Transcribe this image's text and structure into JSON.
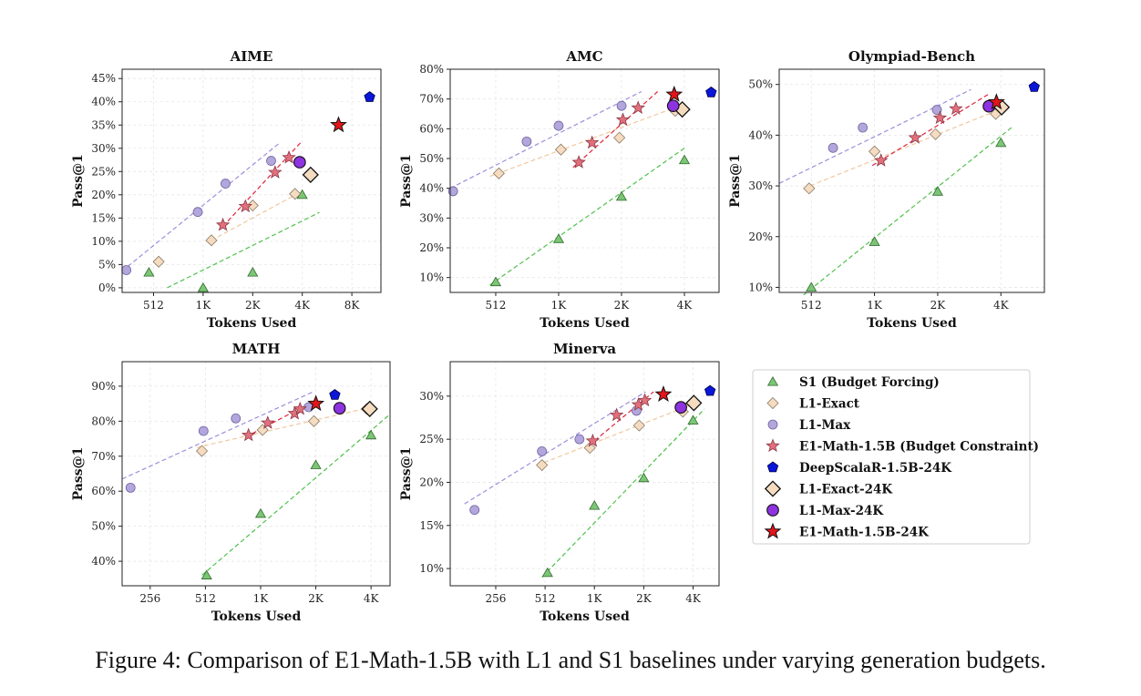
{
  "caption": "Figure 4: Comparison of E1-Math-1.5B with L1 and S1 baselines under varying generation budgets.",
  "colors": {
    "s1": "#7cc576",
    "l1_exact": "#f5dcc0",
    "l1_max": "#b3a6dc",
    "e1": "#e2707c",
    "deepscalar": "#0a16d8",
    "l1_exact_24k": "#f5dcc0",
    "l1_max_24k": "#8e33e0",
    "e1_24k": "#e3141a",
    "s1_line": "#4fc14a",
    "l1_exact_line": "#f0c89e",
    "l1_max_line": "#a08ddc",
    "e1_line": "#e0243b"
  },
  "legend": [
    {
      "key": "s1",
      "label": "S1 (Budget Forcing)",
      "marker": "triangle"
    },
    {
      "key": "l1_exact",
      "label": "L1-Exact",
      "marker": "diamond"
    },
    {
      "key": "l1_max",
      "label": "L1-Max",
      "marker": "circle"
    },
    {
      "key": "e1",
      "label": "E1-Math-1.5B (Budget Constraint)",
      "marker": "star"
    },
    {
      "key": "deepscalar",
      "label": "DeepScalaR-1.5B-24K",
      "marker": "pentagon"
    },
    {
      "key": "l1_exact_24k",
      "label": "L1-Exact-24K",
      "marker": "diamond-big"
    },
    {
      "key": "l1_max_24k",
      "label": "L1-Max-24K",
      "marker": "circle-big"
    },
    {
      "key": "e1_24k",
      "label": "E1-Math-1.5B-24K",
      "marker": "star-big"
    }
  ],
  "chart_data": [
    {
      "type": "scatter",
      "title": "AIME",
      "xlabel": "Tokens Used",
      "ylabel": "Pass@1",
      "xscale": "log2",
      "xlim": [
        330,
        12300
      ],
      "ylim": [
        -1,
        47
      ],
      "xticks": [
        512,
        1024,
        2048,
        4096,
        8192
      ],
      "xticklabels": [
        "512",
        "1K",
        "2K",
        "4K",
        "8K"
      ],
      "yticks": [
        0,
        5,
        10,
        15,
        20,
        25,
        30,
        35,
        40,
        45
      ],
      "yticklabels": [
        "0%",
        "5%",
        "10%",
        "15%",
        "20%",
        "25%",
        "30%",
        "35%",
        "40%",
        "45%"
      ],
      "series": [
        {
          "key": "s1",
          "x": [
            480,
            1024,
            2048,
            4096
          ],
          "y": [
            3.3,
            0,
            3.3,
            20
          ]
        },
        {
          "key": "l1_exact",
          "x": [
            550,
            1150,
            2048,
            3700
          ],
          "y": [
            5.6,
            10.2,
            17.7,
            20.2
          ]
        },
        {
          "key": "l1_max",
          "x": [
            350,
            950,
            1400,
            2650
          ],
          "y": [
            3.8,
            16.3,
            22.4,
            27.3
          ]
        },
        {
          "key": "e1",
          "x": [
            1350,
            1850,
            2800,
            3400
          ],
          "y": [
            13.5,
            17.5,
            24.8,
            28
          ]
        },
        {
          "key": "deepscalar",
          "x": [
            10500
          ],
          "y": [
            41
          ]
        },
        {
          "key": "l1_exact_24k",
          "x": [
            4600
          ],
          "y": [
            24.3
          ]
        },
        {
          "key": "l1_max_24k",
          "x": [
            3950
          ],
          "y": [
            27
          ]
        },
        {
          "key": "e1_24k",
          "x": [
            6800
          ],
          "y": [
            35
          ]
        }
      ],
      "fits": [
        {
          "key": "s1",
          "x": [
            620,
            5200
          ],
          "y": [
            0,
            16.2
          ]
        },
        {
          "key": "l1_exact",
          "x": [
            1150,
            4100
          ],
          "y": [
            10.2,
            20.8
          ]
        },
        {
          "key": "l1_max",
          "x": [
            330,
            2950
          ],
          "y": [
            3.6,
            31
          ]
        },
        {
          "key": "e1",
          "x": [
            1350,
            4000
          ],
          "y": [
            13.2,
            31.2
          ]
        }
      ]
    },
    {
      "type": "scatter",
      "title": "AMC",
      "xlabel": "Tokens Used",
      "ylabel": "Pass@1",
      "xscale": "log2",
      "xlim": [
        310,
        6000
      ],
      "ylim": [
        5,
        80
      ],
      "xticks": [
        512,
        1024,
        2048,
        4096
      ],
      "xticklabels": [
        "512",
        "1K",
        "2K",
        "4K"
      ],
      "yticks": [
        10,
        20,
        30,
        40,
        50,
        60,
        70,
        80
      ],
      "yticklabels": [
        "10%",
        "20%",
        "30%",
        "40%",
        "50%",
        "60%",
        "70%",
        "80%"
      ],
      "series": [
        {
          "key": "s1",
          "x": [
            512,
            1024,
            2048,
            4096
          ],
          "y": [
            8.5,
            23,
            37.2,
            49.5
          ]
        },
        {
          "key": "l1_exact",
          "x": [
            530,
            1050,
            2000,
            3700
          ],
          "y": [
            45,
            53,
            57,
            66
          ]
        },
        {
          "key": "l1_max",
          "x": [
            320,
            720,
            1024,
            2050
          ],
          "y": [
            39,
            55.7,
            61,
            67.7
          ]
        },
        {
          "key": "e1",
          "x": [
            1280,
            1480,
            2080,
            2460
          ],
          "y": [
            48.7,
            55.3,
            63,
            67
          ]
        },
        {
          "key": "deepscalar",
          "x": [
            5500
          ],
          "y": [
            72.2
          ]
        },
        {
          "key": "l1_exact_24k",
          "x": [
            4000
          ],
          "y": [
            66.5
          ]
        },
        {
          "key": "l1_max_24k",
          "x": [
            3620
          ],
          "y": [
            67.7
          ]
        },
        {
          "key": "e1_24k",
          "x": [
            3660
          ],
          "y": [
            71.5
          ]
        }
      ],
      "fits": [
        {
          "key": "s1",
          "x": [
            480,
            4200
          ],
          "y": [
            7.5,
            54
          ]
        },
        {
          "key": "l1_exact",
          "x": [
            480,
            4000
          ],
          "y": [
            44,
            68
          ]
        },
        {
          "key": "l1_max",
          "x": [
            310,
            2550
          ],
          "y": [
            40,
            72.5
          ]
        },
        {
          "key": "e1",
          "x": [
            1200,
            3050
          ],
          "y": [
            47,
            72.5
          ]
        }
      ]
    },
    {
      "type": "scatter",
      "title": "Olympiad-Bench",
      "xlabel": "Tokens Used",
      "ylabel": "Pass@1",
      "xscale": "log2",
      "xlim": [
        360,
        6600
      ],
      "ylim": [
        9,
        53
      ],
      "xticks": [
        512,
        1024,
        2048,
        4096
      ],
      "xticklabels": [
        "512",
        "1K",
        "2K",
        "4K"
      ],
      "yticks": [
        10,
        20,
        30,
        40,
        50
      ],
      "yticklabels": [
        "10%",
        "20%",
        "30%",
        "40%",
        "50%"
      ],
      "series": [
        {
          "key": "s1",
          "x": [
            512,
            1024,
            2048,
            4096
          ],
          "y": [
            10,
            19,
            28.9,
            38.5
          ]
        },
        {
          "key": "l1_exact",
          "x": [
            500,
            1024,
            2000,
            3870
          ],
          "y": [
            29.5,
            36.8,
            40.2,
            44.2
          ]
        },
        {
          "key": "l1_max",
          "x": [
            650,
            900,
            2030,
            3900
          ],
          "y": [
            37.5,
            41.5,
            45,
            46
          ]
        },
        {
          "key": "e1",
          "x": [
            1100,
            1600,
            2100,
            2500
          ],
          "y": [
            35,
            39.5,
            43.4,
            45.2
          ]
        },
        {
          "key": "deepscalar",
          "x": [
            5900
          ],
          "y": [
            49.5
          ]
        },
        {
          "key": "l1_exact_24k",
          "x": [
            4130
          ],
          "y": [
            45.5
          ]
        },
        {
          "key": "l1_max_24k",
          "x": [
            3590
          ],
          "y": [
            45.7
          ]
        },
        {
          "key": "e1_24k",
          "x": [
            3900
          ],
          "y": [
            46.5
          ]
        }
      ],
      "fits": [
        {
          "key": "s1",
          "x": [
            470,
            4600
          ],
          "y": [
            8.5,
            41.5
          ]
        },
        {
          "key": "l1_exact",
          "x": [
            470,
            4000
          ],
          "y": [
            29.5,
            45
          ]
        },
        {
          "key": "l1_max",
          "x": [
            360,
            2950
          ],
          "y": [
            30.5,
            49
          ]
        },
        {
          "key": "e1",
          "x": [
            1000,
            3550
          ],
          "y": [
            34,
            48
          ]
        }
      ]
    },
    {
      "type": "scatter",
      "title": "MATH",
      "xlabel": "Tokens Used",
      "ylabel": "Pass@1",
      "xscale": "log2",
      "xlim": [
        180,
        5200
      ],
      "ylim": [
        33,
        97
      ],
      "xticks": [
        256,
        512,
        1024,
        2048,
        4096
      ],
      "xticklabels": [
        "256",
        "512",
        "1K",
        "2K",
        "4K"
      ],
      "yticks": [
        40,
        50,
        60,
        70,
        80,
        90
      ],
      "yticklabels": [
        "40%",
        "50%",
        "60%",
        "70%",
        "80%",
        "90%"
      ],
      "series": [
        {
          "key": "s1",
          "x": [
            520,
            1024,
            2048,
            4096
          ],
          "y": [
            36,
            53.6,
            67.5,
            76
          ]
        },
        {
          "key": "l1_exact",
          "x": [
            490,
            1050,
            2000,
            3880
          ],
          "y": [
            71.5,
            77.5,
            80,
            83.5
          ]
        },
        {
          "key": "l1_max",
          "x": [
            200,
            500,
            750,
            1870
          ],
          "y": [
            61,
            77.2,
            80.8,
            84
          ]
        },
        {
          "key": "e1",
          "x": [
            880,
            1120,
            1570,
            1680
          ],
          "y": [
            76,
            79.5,
            82.2,
            83.5
          ]
        },
        {
          "key": "deepscalar",
          "x": [
            2600
          ],
          "y": [
            87.5
          ]
        },
        {
          "key": "l1_exact_24k",
          "x": [
            4030
          ],
          "y": [
            83.5
          ]
        },
        {
          "key": "l1_max_24k",
          "x": [
            2760
          ],
          "y": [
            83.7
          ]
        },
        {
          "key": "e1_24k",
          "x": [
            2050
          ],
          "y": [
            85
          ]
        }
      ],
      "fits": [
        {
          "key": "s1",
          "x": [
            490,
            5200
          ],
          "y": [
            36,
            82
          ]
        },
        {
          "key": "l1_exact",
          "x": [
            460,
            4100
          ],
          "y": [
            72.5,
            84
          ]
        },
        {
          "key": "l1_max",
          "x": [
            180,
            2000
          ],
          "y": [
            63.5,
            88.5
          ]
        },
        {
          "key": "e1",
          "x": [
            850,
            2050
          ],
          "y": [
            75.5,
            86
          ]
        }
      ]
    },
    {
      "type": "scatter",
      "title": "Minerva",
      "xlabel": "Tokens Used",
      "ylabel": "Pass@1",
      "xscale": "log2",
      "xlim": [
        135,
        5900
      ],
      "ylim": [
        8,
        34
      ],
      "xticks": [
        256,
        512,
        1024,
        2048,
        4096
      ],
      "xticklabels": [
        "256",
        "512",
        "1K",
        "2K",
        "4K"
      ],
      "yticks": [
        10,
        15,
        20,
        25,
        30
      ],
      "yticklabels": [
        "10%",
        "15%",
        "20%",
        "25%",
        "30%"
      ],
      "series": [
        {
          "key": "s1",
          "x": [
            530,
            1024,
            2048,
            4096
          ],
          "y": [
            9.5,
            17.3,
            20.5,
            27.2
          ]
        },
        {
          "key": "l1_exact",
          "x": [
            490,
            960,
            1920,
            3550
          ],
          "y": [
            22,
            24,
            26.6,
            28.2
          ]
        },
        {
          "key": "l1_max",
          "x": [
            190,
            490,
            830,
            1850
          ],
          "y": [
            16.8,
            23.6,
            25,
            28.3
          ]
        },
        {
          "key": "e1",
          "x": [
            1000,
            1400,
            1900,
            2080
          ],
          "y": [
            24.8,
            27.8,
            29,
            29.5
          ]
        },
        {
          "key": "deepscalar",
          "x": [
            5200
          ],
          "y": [
            30.6
          ]
        },
        {
          "key": "l1_exact_24k",
          "x": [
            4140
          ],
          "y": [
            29.2
          ]
        },
        {
          "key": "l1_max_24k",
          "x": [
            3450
          ],
          "y": [
            28.7
          ]
        },
        {
          "key": "e1_24k",
          "x": [
            2700
          ],
          "y": [
            30.2
          ]
        }
      ],
      "fits": [
        {
          "key": "s1",
          "x": [
            490,
            4800
          ],
          "y": [
            9,
            28.5
          ]
        },
        {
          "key": "l1_exact",
          "x": [
            460,
            4000
          ],
          "y": [
            22,
            29
          ]
        },
        {
          "key": "l1_max",
          "x": [
            165,
            2100
          ],
          "y": [
            17.5,
            30.5
          ]
        },
        {
          "key": "e1",
          "x": [
            950,
            2350
          ],
          "y": [
            24.3,
            30.5
          ]
        }
      ]
    }
  ]
}
